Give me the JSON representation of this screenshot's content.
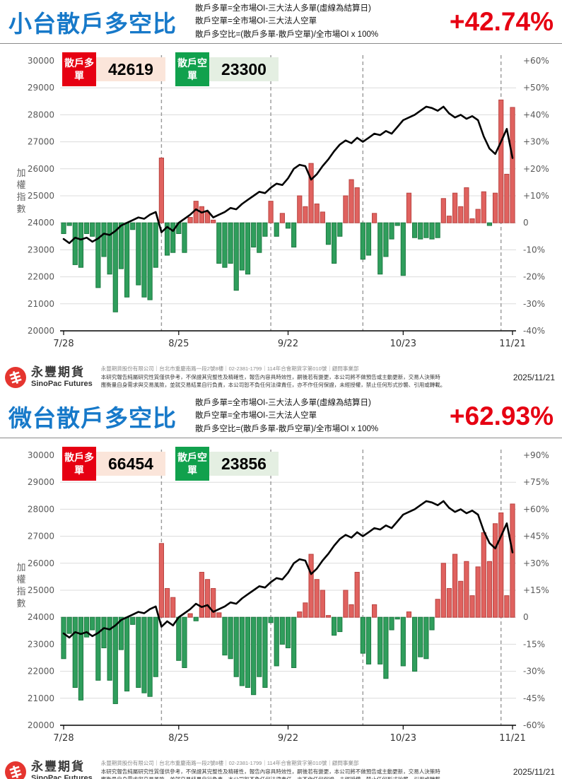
{
  "date": "2025/11/21",
  "header_notes": [
    "散戶多單=全市場OI-三大法人多單(虛線為結算日)",
    "散戶空單=全市場OI-三大法人空單",
    "散戶多空比=(散戶多單-散戶空單)/全市場OI x 100%"
  ],
  "footer": {
    "brand_zh": "永豐期貨",
    "brand_en": "SinoPac Futures",
    "disclaimer": [
      "永豐期貨股份有限公司｜台北市重慶南路一段2號8樓｜02-2381-1799｜114年合會期貨字第010號｜顧問事業部",
      "本研究報告純屬研究性質僅供參考，不保證其完整性及精確性，報告內容具時效性，嗣後若有變更，本公司將不做預告或主動更新，交易人決策時",
      "應衡量自身需求與交易風險，並就交易結果自行負責，本公司恕不負任何法律責任，亦不作任何保證，未經授權，禁止任何形式抄襲、引用或轉載。"
    ]
  },
  "colors": {
    "title_blue": "#1779c9",
    "ratio_red": "#e60012",
    "bar_up_fill": "#e0625f",
    "bar_up_stroke": "#b94441",
    "bar_down_fill": "#2f9e5c",
    "bar_down_stroke": "#1d7a42",
    "index_line": "#000000",
    "grid": "#dcdcdc",
    "axis_text": "#595959",
    "settlement_dash": "#999999",
    "badge_long_bg": "#e60012",
    "badge_long_value_bg": "#fbe5da",
    "badge_short_bg": "#11a14d",
    "badge_short_value_bg": "#e4efe2"
  },
  "chart_data": [
    {
      "type": "bar+line",
      "title": "小台散戶多空比",
      "ratio": "+42.74%",
      "long_label": "散戶多單",
      "long_value": "42619",
      "short_label": "散戶空單",
      "short_value": "23300",
      "left_axis": {
        "label": "加權指數",
        "min": 20000,
        "max": 30000,
        "step": 1000
      },
      "right_axis": {
        "label": "散戶多空比",
        "min": -40,
        "max": 60,
        "step": 10,
        "unit": "%"
      },
      "x_ticks": [
        {
          "label": "7/28",
          "day": 0
        },
        {
          "label": "8/25",
          "day": 20
        },
        {
          "label": "9/22",
          "day": 39
        },
        {
          "label": "10/23",
          "day": 59
        },
        {
          "label": "11/21",
          "day": 78
        }
      ],
      "settlement_days": [
        17,
        36,
        52,
        76
      ],
      "bars_pct": [
        -4,
        -1,
        -15.5,
        -16.5,
        -4,
        -5,
        -24,
        -12.5,
        -19,
        -33,
        -17,
        -27.5,
        -2.5,
        -23,
        -27.5,
        -28.5,
        -16.5,
        24,
        -12,
        -11,
        -4,
        -11,
        2,
        8,
        6,
        4,
        1,
        -15,
        -16.5,
        -15,
        -25,
        -17.5,
        -19,
        -9,
        -11,
        -5,
        8,
        -5,
        3.5,
        -2,
        -9,
        10,
        6,
        22,
        7,
        4,
        -8,
        -15,
        -5,
        10,
        16,
        13,
        -13.5,
        -12,
        3.5,
        -19,
        -12.5,
        -6,
        -1,
        -19.5,
        11,
        -5.5,
        -6,
        -5.5,
        -6,
        -5.5,
        9,
        2.5,
        11,
        6,
        13,
        1.5,
        5,
        11.5,
        -1,
        11,
        45.5,
        18,
        42.74
      ],
      "line_index": [
        23400,
        23250,
        23450,
        23380,
        23450,
        23300,
        23420,
        23600,
        23550,
        23700,
        23900,
        24000,
        24100,
        24200,
        24150,
        24300,
        24400,
        23650,
        23850,
        23700,
        24000,
        24150,
        24300,
        24500,
        24380,
        24450,
        24200,
        24300,
        24400,
        24550,
        24500,
        24700,
        24850,
        25000,
        25150,
        25100,
        25300,
        25450,
        25400,
        25650,
        26000,
        26150,
        26100,
        25600,
        25800,
        26100,
        26350,
        26650,
        26900,
        27050,
        26950,
        27150,
        27000,
        27150,
        27300,
        27250,
        27400,
        27300,
        27550,
        27800,
        27900,
        28000,
        28150,
        28300,
        28250,
        28150,
        28300,
        28050,
        27900,
        28000,
        27850,
        27950,
        27800,
        27200,
        26750,
        26550,
        27000,
        27480,
        26400
      ]
    },
    {
      "type": "bar+line",
      "title": "微台散戶多空比",
      "ratio": "+62.93%",
      "long_label": "散戶多單",
      "long_value": "66454",
      "short_label": "散戶空單",
      "short_value": "23856",
      "left_axis": {
        "label": "加權指數",
        "min": 20000,
        "max": 30000,
        "step": 1000
      },
      "right_axis": {
        "label": "散戶多空比",
        "min": -60,
        "max": 90,
        "step": 15,
        "unit": "%"
      },
      "x_ticks": [
        {
          "label": "7/28",
          "day": 0
        },
        {
          "label": "8/25",
          "day": 20
        },
        {
          "label": "9/22",
          "day": 39
        },
        {
          "label": "10/23",
          "day": 59
        },
        {
          "label": "11/21",
          "day": 78
        }
      ],
      "settlement_days": [
        17,
        36,
        52,
        76
      ],
      "bars_pct": [
        -23,
        -9,
        -39,
        -46,
        -11,
        -7,
        -35,
        -17,
        -35,
        -48,
        -18,
        -41,
        -4,
        -39,
        -42,
        -44,
        -33,
        41,
        16,
        11,
        -24,
        -28,
        2,
        -2,
        25,
        21,
        16,
        2.5,
        -21,
        -23,
        -33,
        -38,
        -39,
        -43,
        -33,
        -39,
        -3,
        -27,
        -15,
        -17,
        -28,
        3,
        8,
        35,
        21,
        15,
        1,
        -10,
        -8,
        15,
        7,
        25,
        -20,
        -26,
        7,
        -26,
        -34,
        -7,
        -1,
        -27,
        3,
        -30,
        -22,
        -23,
        -7,
        10,
        30,
        16,
        35,
        20,
        31,
        12,
        28,
        47,
        31,
        52,
        58,
        12,
        62.93
      ],
      "line_index": [
        23400,
        23250,
        23450,
        23380,
        23450,
        23300,
        23420,
        23600,
        23550,
        23700,
        23900,
        24000,
        24100,
        24200,
        24150,
        24300,
        24400,
        23650,
        23850,
        23700,
        24000,
        24150,
        24300,
        24500,
        24380,
        24450,
        24200,
        24300,
        24400,
        24550,
        24500,
        24700,
        24850,
        25000,
        25150,
        25100,
        25300,
        25450,
        25400,
        25650,
        26000,
        26150,
        26100,
        25600,
        25800,
        26100,
        26350,
        26650,
        26900,
        27050,
        26950,
        27150,
        27000,
        27150,
        27300,
        27250,
        27400,
        27300,
        27550,
        27800,
        27900,
        28000,
        28150,
        28300,
        28250,
        28150,
        28300,
        28050,
        27900,
        28000,
        27850,
        27950,
        27800,
        27200,
        26750,
        26550,
        27000,
        27480,
        26400
      ]
    }
  ]
}
